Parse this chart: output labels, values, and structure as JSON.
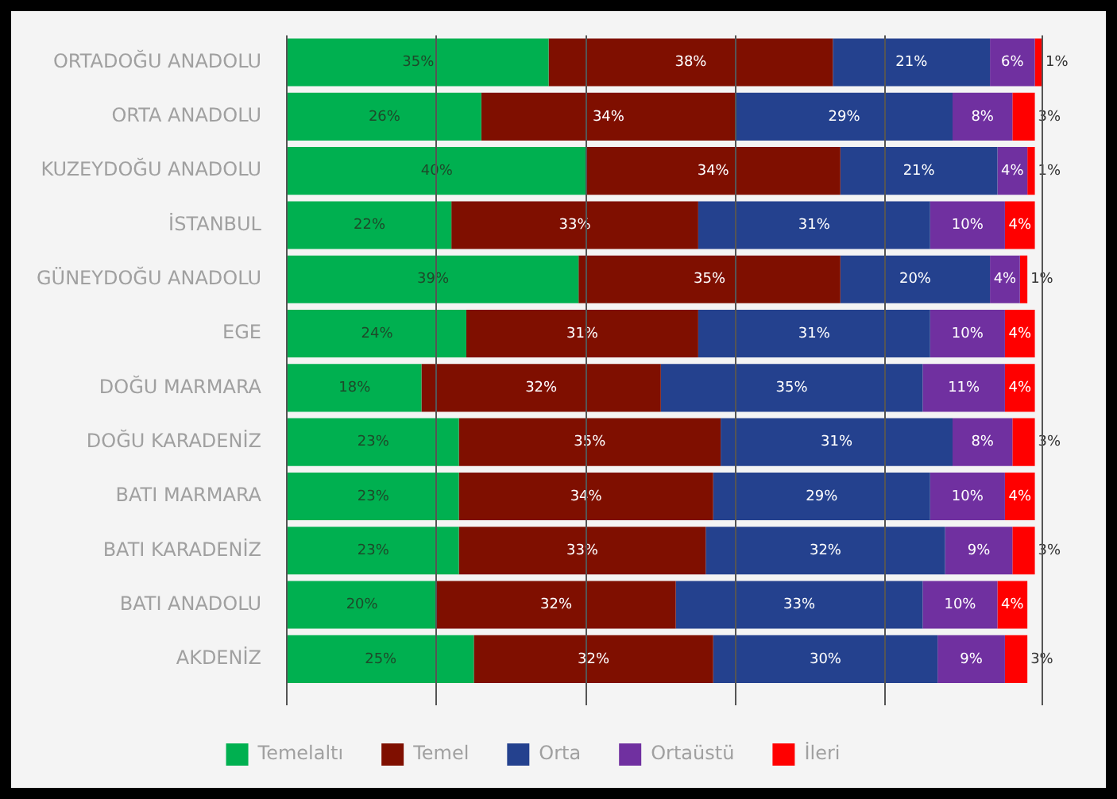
{
  "chart_data": {
    "type": "bar",
    "orientation": "horizontal",
    "stacked": true,
    "categories": [
      "ORTADOĞU ANADOLU",
      "ORTA ANADOLU",
      "KUZEYDOĞU ANADOLU",
      "İSTANBUL",
      "GÜNEYDOĞU ANADOLU",
      "EGE",
      "DOĞU MARMARA",
      "DOĞU KARADENİZ",
      "BATI MARMARA",
      "BATI KARADENİZ",
      "BATI ANADOLU",
      "AKDENİZ"
    ],
    "series": [
      {
        "name": "Temelaltı",
        "color": "#00b050",
        "values": [
          35,
          26,
          40,
          22,
          39,
          24,
          18,
          23,
          23,
          23,
          20,
          25
        ],
        "value_labels": [
          "35%",
          "26%",
          "40%",
          "22%",
          "39%",
          "24%",
          "18%",
          "23%",
          "23%",
          "23%",
          "20%",
          "25%"
        ]
      },
      {
        "name": "Temel",
        "color": "#7f0f00",
        "values": [
          38,
          34,
          34,
          33,
          35,
          31,
          32,
          35,
          34,
          33,
          32,
          32
        ],
        "value_labels": [
          "38%",
          "34%",
          "34%",
          "33%",
          "35%",
          "31%",
          "32%",
          "35%",
          "34%",
          "33%",
          "32%",
          "32%"
        ]
      },
      {
        "name": "Orta",
        "color": "#24418e",
        "values": [
          21,
          29,
          21,
          31,
          20,
          31,
          35,
          31,
          29,
          32,
          33,
          30
        ],
        "value_labels": [
          "21%",
          "29%",
          "21%",
          "31%",
          "20%",
          "31%",
          "35%",
          "31%",
          "29%",
          "32%",
          "33%",
          "30%"
        ]
      },
      {
        "name": "Ortaüstü",
        "color": "#7030a0",
        "values": [
          6,
          8,
          4,
          10,
          4,
          10,
          11,
          8,
          10,
          9,
          10,
          9
        ],
        "value_labels": [
          "6%",
          "8%",
          "4%",
          "10%",
          "4%",
          "10%",
          "11%",
          "8%",
          "10%",
          "9%",
          "10%",
          "9%"
        ]
      },
      {
        "name": "İleri",
        "color": "#ff0000",
        "values": [
          1,
          3,
          1,
          4,
          1,
          4,
          4,
          3,
          4,
          3,
          4,
          3
        ],
        "value_labels": [
          "1%",
          "3%",
          "1%",
          "4%",
          "1%",
          "4%",
          "4%",
          "3%",
          "4%",
          "3%",
          "4%",
          "3%"
        ]
      }
    ],
    "tick_labels": "y",
    "grid": "x",
    "legend": "bottom"
  }
}
